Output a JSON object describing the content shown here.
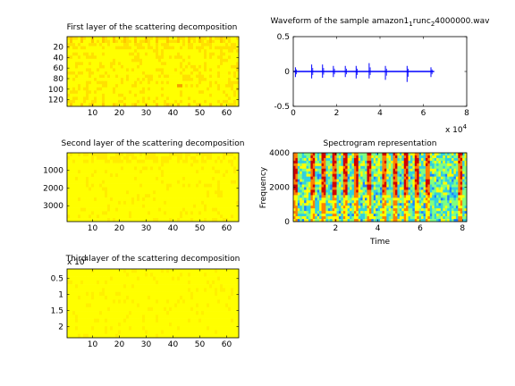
{
  "figure_background": "#ffffff",
  "chart_data": [
    {
      "id": "scatter1",
      "type": "heatmap",
      "title": "First layer of the scattering decomposition",
      "xlabel": "",
      "ylabel": "",
      "xlim": [
        0.5,
        64.5
      ],
      "ylim": [
        0.5,
        132.5
      ],
      "y_reversed": true,
      "xticks": [
        10,
        20,
        30,
        40,
        50,
        60
      ],
      "yticks": [
        20,
        40,
        60,
        80,
        100,
        120
      ],
      "colors": [
        "#ffff00",
        "#ffe100",
        "#ffc800",
        "#f5a000"
      ],
      "highlight_columns": [
        2,
        6,
        10,
        14,
        18,
        22,
        26,
        30,
        34,
        38,
        42,
        46,
        50,
        54,
        58
      ],
      "hot_cell": {
        "x": 42,
        "y": 93
      }
    },
    {
      "id": "waveform",
      "type": "line",
      "title": "Waveform of the sample amazon1_1runc_24000000.wav",
      "title_parts": {
        "prefix": "Waveform of the sample amazon1",
        "sub1": "1",
        "mid": "runc",
        "sub2": "2",
        "suffix": "4000000.wav"
      },
      "xlabel": "",
      "ylabel": "",
      "xlim": [
        0,
        80000
      ],
      "ylim": [
        -0.5,
        0.5
      ],
      "xticks": [
        0,
        2,
        4,
        6,
        8
      ],
      "yticks": [
        -0.5,
        0,
        0.5
      ],
      "x_multiplier": {
        "base": "x 10",
        "exponent": "4"
      },
      "line_color": "#0000ff",
      "signal_end": 65000,
      "spikes": [
        {
          "x": 1000,
          "up": 0.06,
          "down": -0.08
        },
        {
          "x": 8500,
          "up": 0.1,
          "down": -0.1
        },
        {
          "x": 13500,
          "up": 0.1,
          "down": -0.09
        },
        {
          "x": 18500,
          "up": 0.08,
          "down": -0.08
        },
        {
          "x": 24000,
          "up": 0.08,
          "down": -0.08
        },
        {
          "x": 29000,
          "up": 0.08,
          "down": -0.1
        },
        {
          "x": 35000,
          "up": 0.12,
          "down": -0.1
        },
        {
          "x": 42500,
          "up": 0.08,
          "down": -0.12
        },
        {
          "x": 52500,
          "up": 0.08,
          "down": -0.15
        },
        {
          "x": 63500,
          "up": 0.06,
          "down": -0.08
        }
      ]
    },
    {
      "id": "scatter2",
      "type": "heatmap",
      "title": "Second layer of the scattering decomposition",
      "xlabel": "",
      "ylabel": "",
      "xlim": [
        0.5,
        64.5
      ],
      "ylim": [
        0.5,
        3900
      ],
      "y_reversed": true,
      "xticks": [
        10,
        20,
        30,
        40,
        50,
        60
      ],
      "yticks": [
        1000,
        2000,
        3000
      ],
      "colors": [
        "#ffff00",
        "#ffec00",
        "#ffd800"
      ]
    },
    {
      "id": "spectrogram",
      "type": "heatmap",
      "title": "Spectrogram representation",
      "xlabel": "Time",
      "ylabel": "Frequency",
      "xlim": [
        0,
        82000
      ],
      "ylim": [
        0,
        4000
      ],
      "xticks": [
        2,
        4,
        6,
        8
      ],
      "yticks": [
        0,
        2000,
        4000
      ],
      "colors": [
        "#2080ff",
        "#30d0e0",
        "#80ff80",
        "#ffff00",
        "#ff8000",
        "#d00000"
      ],
      "event_times": [
        1000,
        8500,
        13500,
        18500,
        24000,
        29000,
        35000,
        42500,
        47500,
        52500,
        58000,
        63500,
        78000
      ]
    },
    {
      "id": "scatter3",
      "type": "heatmap",
      "title": "Third layer of the scattering decomposition",
      "xlabel": "",
      "ylabel": "",
      "xlim": [
        0.5,
        64.5
      ],
      "ylim": [
        2000,
        23500
      ],
      "y_reversed": true,
      "xticks": [
        10,
        20,
        30,
        40,
        50,
        60
      ],
      "yticks": [
        5000,
        10000,
        15000,
        20000
      ],
      "ytick_labels": [
        "0.5",
        "1",
        "1.5",
        "2"
      ],
      "y_multiplier": {
        "base": "x 10",
        "exponent": "4"
      },
      "colors": [
        "#ffff00",
        "#fff000",
        "#ffe500"
      ]
    }
  ]
}
